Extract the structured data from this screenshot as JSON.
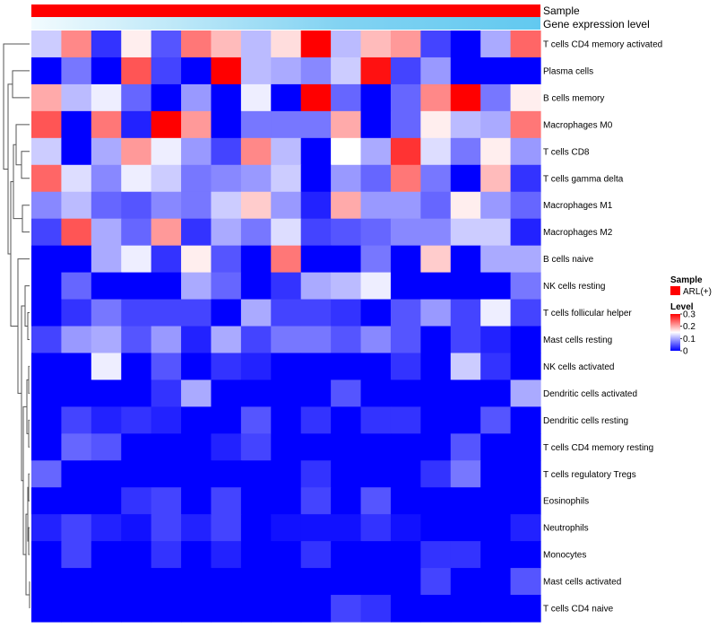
{
  "chart_data": {
    "type": "heatmap",
    "title": "",
    "annotation_labels": [
      "Sample",
      "Gene expression level"
    ],
    "sample_annotation_color": "#ff0000",
    "expression_gradient": [
      "#f2fbfe",
      "#83d3f2",
      "#62c9f0"
    ],
    "rows": [
      "T cells CD4 memory activated",
      "Plasma cells",
      "B cells memory",
      "Macrophages M0",
      "T cells CD8",
      "T cells gamma delta",
      "Macrophages M1",
      "Macrophages M2",
      "B cells naive",
      "NK cells resting",
      "T cells follicular helper",
      "Mast cells resting",
      "NK cells activated",
      "Dendritic cells activated",
      "Dendritic cells resting",
      "T cells CD4 memory resting",
      "T cells regulatory  Tregs",
      "Eosinophils",
      "Neutrophils",
      "Monocytes",
      "Mast cells activated",
      "T cells CD4 naive"
    ],
    "values": [
      [
        0.12,
        0.22,
        0.03,
        0.16,
        0.05,
        0.23,
        0.19,
        0.11,
        0.17,
        0.3,
        0.11,
        0.19,
        0.21,
        0.04,
        0.0,
        0.1,
        0.24
      ],
      [
        0.0,
        0.07,
        0.0,
        0.25,
        0.04,
        0.0,
        0.3,
        0.11,
        0.1,
        0.08,
        0.12,
        0.29,
        0.04,
        0.09,
        0.0,
        0.0,
        0.0
      ],
      [
        0.2,
        0.11,
        0.14,
        0.06,
        0.0,
        0.09,
        0.0,
        0.14,
        0.0,
        0.3,
        0.06,
        0.0,
        0.06,
        0.22,
        0.3,
        0.07,
        0.16
      ],
      [
        0.25,
        0.0,
        0.23,
        0.02,
        0.3,
        0.21,
        0.0,
        0.07,
        0.07,
        0.07,
        0.2,
        0.0,
        0.06,
        0.16,
        0.11,
        0.1,
        0.23
      ],
      [
        0.12,
        0.0,
        0.1,
        0.21,
        0.14,
        0.09,
        0.04,
        0.22,
        0.11,
        0.0,
        0.15,
        0.1,
        0.27,
        0.13,
        0.07,
        0.16,
        0.09
      ],
      [
        0.24,
        0.13,
        0.08,
        0.14,
        0.12,
        0.07,
        0.08,
        0.09,
        0.12,
        0.0,
        0.09,
        0.06,
        0.23,
        0.07,
        0.0,
        0.19,
        0.03
      ],
      [
        0.08,
        0.11,
        0.06,
        0.05,
        0.08,
        0.07,
        0.12,
        0.18,
        0.09,
        0.02,
        0.2,
        0.09,
        0.09,
        0.06,
        0.16,
        0.09,
        0.06
      ],
      [
        0.04,
        0.25,
        0.1,
        0.06,
        0.21,
        0.03,
        0.1,
        0.07,
        0.13,
        0.04,
        0.05,
        0.06,
        0.08,
        0.08,
        0.12,
        0.12,
        0.02
      ],
      [
        0.0,
        0.0,
        0.1,
        0.14,
        0.03,
        0.16,
        0.05,
        0.0,
        0.23,
        0.0,
        0.0,
        0.07,
        0.0,
        0.18,
        0.0,
        0.1,
        0.1
      ],
      [
        0.0,
        0.06,
        0.0,
        0.0,
        0.0,
        0.1,
        0.06,
        0.0,
        0.03,
        0.1,
        0.11,
        0.14,
        0.0,
        0.0,
        0.0,
        0.0,
        0.07
      ],
      [
        0.0,
        0.03,
        0.07,
        0.04,
        0.04,
        0.04,
        0.0,
        0.1,
        0.04,
        0.04,
        0.03,
        0.0,
        0.05,
        0.09,
        0.04,
        0.14,
        0.04
      ],
      [
        0.04,
        0.09,
        0.1,
        0.05,
        0.09,
        0.02,
        0.1,
        0.04,
        0.07,
        0.07,
        0.05,
        0.08,
        0.05,
        0.0,
        0.04,
        0.02,
        0.0
      ],
      [
        0.0,
        0.0,
        0.14,
        0.0,
        0.05,
        0.0,
        0.03,
        0.02,
        0.0,
        0.0,
        0.0,
        0.0,
        0.03,
        0.0,
        0.12,
        0.03,
        0.0
      ],
      [
        0.0,
        0.0,
        0.0,
        0.0,
        0.03,
        0.1,
        0.0,
        0.0,
        0.0,
        0.0,
        0.05,
        0.0,
        0.0,
        0.0,
        0.0,
        0.0,
        0.1
      ],
      [
        0.0,
        0.04,
        0.02,
        0.03,
        0.02,
        0.0,
        0.0,
        0.05,
        0.0,
        0.03,
        0.0,
        0.03,
        0.03,
        0.0,
        0.0,
        0.05,
        0.0
      ],
      [
        0.0,
        0.06,
        0.05,
        0.0,
        0.0,
        0.0,
        0.02,
        0.04,
        0.0,
        0.0,
        0.0,
        0.0,
        0.0,
        0.0,
        0.05,
        0.0,
        0.0
      ],
      [
        0.06,
        0.0,
        0.0,
        0.0,
        0.0,
        0.0,
        0.0,
        0.0,
        0.0,
        0.03,
        0.0,
        0.0,
        0.0,
        0.03,
        0.07,
        0.0,
        0.0
      ],
      [
        0.0,
        0.0,
        0.0,
        0.03,
        0.04,
        0.0,
        0.04,
        0.0,
        0.0,
        0.04,
        0.0,
        0.05,
        0.0,
        0.0,
        0.0,
        0.0,
        0.0
      ],
      [
        0.02,
        0.04,
        0.02,
        0.01,
        0.04,
        0.02,
        0.04,
        0.0,
        0.01,
        0.01,
        0.01,
        0.03,
        0.01,
        0.0,
        0.0,
        0.0,
        0.02
      ],
      [
        0.0,
        0.04,
        0.0,
        0.0,
        0.03,
        0.0,
        0.02,
        0.0,
        0.0,
        0.03,
        0.0,
        0.0,
        0.0,
        0.03,
        0.03,
        0.0,
        0.0
      ],
      [
        0.0,
        0.0,
        0.0,
        0.0,
        0.0,
        0.0,
        0.0,
        0.0,
        0.0,
        0.0,
        0.0,
        0.0,
        0.0,
        0.04,
        0.0,
        0.0,
        0.05
      ],
      [
        0.0,
        0.0,
        0.0,
        0.0,
        0.0,
        0.0,
        0.0,
        0.0,
        0.0,
        0.0,
        0.04,
        0.03,
        0.0,
        0.0,
        0.0,
        0.0,
        0.0
      ]
    ],
    "legend": {
      "sample_title": "Sample",
      "sample_item": "ARL(+)",
      "level_title": "Level",
      "ticks": [
        "0.3",
        "0.2",
        "0.1",
        "0"
      ],
      "tick_values": [
        0.3,
        0.2,
        0.1,
        0
      ]
    },
    "color_scale": {
      "min": 0,
      "mid": 0.15,
      "max": 0.3,
      "low": "#0000ff",
      "mid_color": "#ffffff",
      "high": "#ff0000"
    }
  }
}
